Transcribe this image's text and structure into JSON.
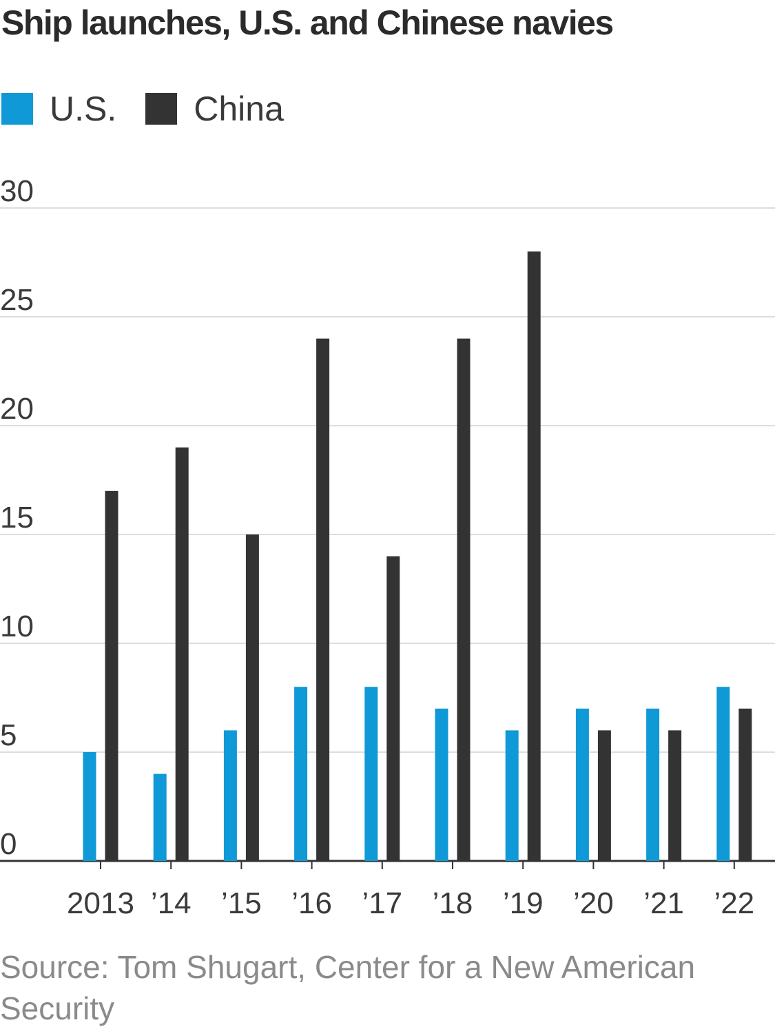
{
  "colors": {
    "us": "#0f99d6",
    "china": "#333333",
    "grid": "#dddddd",
    "axis": "#333333",
    "tick_text": "#3a3a3a"
  },
  "chart_data": {
    "type": "bar",
    "title": "Ship launches, U.S. and Chinese navies",
    "xlabel": "",
    "ylabel": "",
    "categories": [
      "2013",
      "’14",
      "’15",
      "’16",
      "’17",
      "’18",
      "’19",
      "’20",
      "’21",
      "’22"
    ],
    "series": [
      {
        "name": "U.S.",
        "values": [
          5,
          4,
          6,
          8,
          8,
          7,
          6,
          7,
          7,
          8
        ]
      },
      {
        "name": "China",
        "values": [
          17,
          19,
          15,
          24,
          14,
          24,
          28,
          6,
          6,
          7
        ]
      }
    ],
    "ylim": [
      0,
      30
    ],
    "yticks": [
      0,
      5,
      10,
      15,
      20,
      25,
      30
    ],
    "grid": true,
    "legend_position": "top-left",
    "source": "Source: Tom Shugart, Center for a New American Security"
  }
}
